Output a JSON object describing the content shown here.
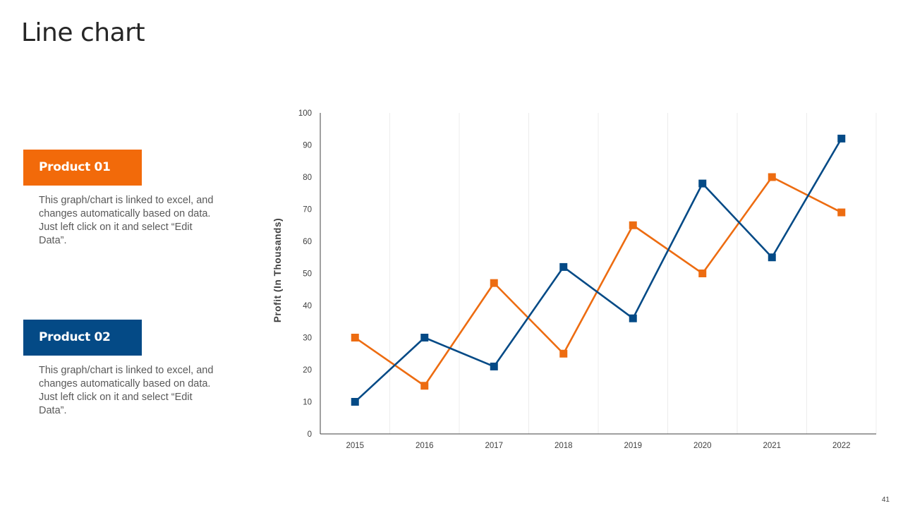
{
  "slide": {
    "title": "Line chart",
    "page_number": "41"
  },
  "products": [
    {
      "label": "Product 01",
      "color": "#f26a0a",
      "description": "This graph/chart is linked to excel, and changes automatically based on data. Just left click on it and select “Edit Data”."
    },
    {
      "label": "Product 02",
      "color": "#044a86",
      "description": "This graph/chart is linked to excel, and changes automatically based on data. Just left click on it and select “Edit Data”."
    }
  ],
  "chart_data": {
    "type": "line",
    "title": "",
    "xlabel": "",
    "ylabel": "Profit (In Thousands)",
    "categories": [
      "2015",
      "2016",
      "2017",
      "2018",
      "2019",
      "2020",
      "2021",
      "2022"
    ],
    "ylim": [
      0,
      100
    ],
    "yticks": [
      0,
      10,
      20,
      30,
      40,
      50,
      60,
      70,
      80,
      90,
      100
    ],
    "grid": "vertical",
    "legend": "none",
    "marker": "square",
    "series": [
      {
        "name": "Product 01",
        "color": "#ed6c11",
        "values": [
          30,
          15,
          47,
          25,
          65,
          50,
          80,
          69
        ]
      },
      {
        "name": "Product 02",
        "color": "#044a86",
        "values": [
          10,
          30,
          21,
          52,
          36,
          78,
          55,
          92
        ]
      }
    ]
  }
}
